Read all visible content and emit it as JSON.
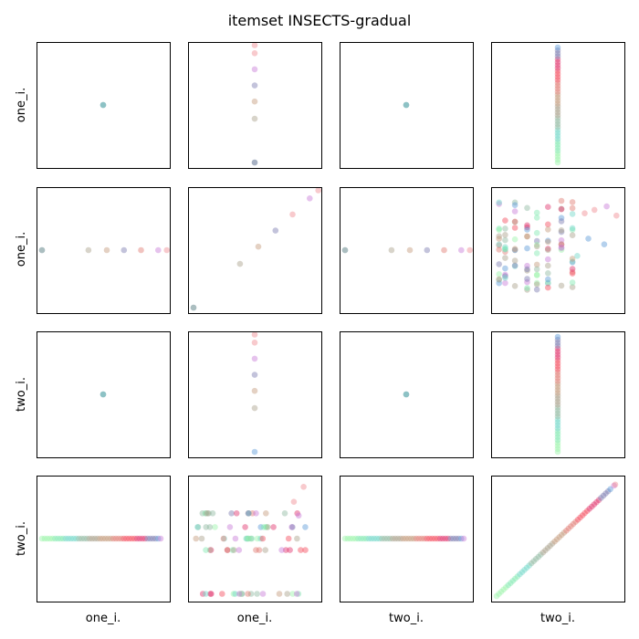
{
  "chart_data": {
    "type": "scatter",
    "title": "itemset INSECTS-gradual",
    "grid": false,
    "rows": [
      "one_i.",
      "one_i.",
      "two_i.",
      "two_i."
    ],
    "cols": [
      "one_i.",
      "one_i.",
      "two_i.",
      "two_i."
    ],
    "palette": [
      "#98f5a8",
      "#7fe8b0",
      "#6fd6c8",
      "#8fb8a0",
      "#a8a08a",
      "#c49a7a",
      "#e07a70",
      "#f44a5a",
      "#e0306a",
      "#7a7ab0",
      "#5a9ad8",
      "#c87ad8",
      "#f08a90",
      "#9aa0c8"
    ],
    "panels": [
      {
        "row": 0,
        "col": 0,
        "points": [
          [
            0.5,
            0.5,
            3
          ],
          [
            0.5,
            0.5,
            9
          ],
          [
            0.5,
            0.5,
            2
          ]
        ]
      },
      {
        "row": 0,
        "col": 1,
        "points": [
          [
            0.5,
            0.0,
            3
          ],
          [
            0.5,
            0.0,
            9
          ],
          [
            0.5,
            0.38,
            4
          ],
          [
            0.5,
            0.53,
            5
          ],
          [
            0.5,
            0.67,
            9
          ],
          [
            0.5,
            0.81,
            11
          ],
          [
            0.5,
            0.95,
            12
          ],
          [
            0.5,
            1.02,
            12
          ]
        ]
      },
      {
        "row": 0,
        "col": 2,
        "points": [
          [
            0.5,
            0.5,
            3
          ],
          [
            0.5,
            0.5,
            9
          ],
          [
            0.5,
            0.5,
            2
          ]
        ]
      },
      {
        "row": 0,
        "col": 3,
        "points": "col_dense_a"
      },
      {
        "row": 1,
        "col": 0,
        "points": [
          [
            0.0,
            0.5,
            9
          ],
          [
            0.0,
            0.5,
            3
          ],
          [
            0.38,
            0.5,
            4
          ],
          [
            0.53,
            0.5,
            5
          ],
          [
            0.67,
            0.5,
            9
          ],
          [
            0.81,
            0.5,
            6
          ],
          [
            0.95,
            0.5,
            11
          ],
          [
            1.02,
            0.5,
            12
          ]
        ]
      },
      {
        "row": 1,
        "col": 1,
        "points": [
          [
            0.0,
            0.0,
            9
          ],
          [
            0.0,
            0.0,
            3
          ],
          [
            0.38,
            0.38,
            4
          ],
          [
            0.53,
            0.53,
            5
          ],
          [
            0.67,
            0.67,
            9
          ],
          [
            0.81,
            0.81,
            12
          ],
          [
            0.95,
            0.95,
            11
          ],
          [
            1.02,
            1.02,
            12
          ]
        ]
      },
      {
        "row": 1,
        "col": 2,
        "points": [
          [
            0.0,
            0.5,
            9
          ],
          [
            0.0,
            0.5,
            3
          ],
          [
            0.38,
            0.5,
            4
          ],
          [
            0.53,
            0.5,
            5
          ],
          [
            0.67,
            0.5,
            9
          ],
          [
            0.81,
            0.5,
            6
          ],
          [
            0.95,
            0.5,
            11
          ],
          [
            1.02,
            0.5,
            12
          ]
        ]
      },
      {
        "row": 1,
        "col": 3,
        "points": "spread_b"
      },
      {
        "row": 2,
        "col": 0,
        "points": [
          [
            0.5,
            0.5,
            3
          ],
          [
            0.5,
            0.5,
            9
          ],
          [
            0.5,
            0.5,
            2
          ]
        ]
      },
      {
        "row": 2,
        "col": 1,
        "points": [
          [
            0.5,
            0.0,
            10
          ],
          [
            0.5,
            0.38,
            4
          ],
          [
            0.5,
            0.53,
            5
          ],
          [
            0.5,
            0.67,
            9
          ],
          [
            0.5,
            0.81,
            11
          ],
          [
            0.5,
            0.95,
            12
          ],
          [
            0.5,
            1.02,
            12
          ]
        ]
      },
      {
        "row": 2,
        "col": 2,
        "points": [
          [
            0.5,
            0.5,
            3
          ],
          [
            0.5,
            0.5,
            9
          ],
          [
            0.5,
            0.5,
            2
          ]
        ]
      },
      {
        "row": 2,
        "col": 3,
        "points": "col_dense_b"
      },
      {
        "row": 3,
        "col": 0,
        "points": "row_dense_a"
      },
      {
        "row": 3,
        "col": 1,
        "points": "spread_c"
      },
      {
        "row": 3,
        "col": 2,
        "points": "row_dense_a"
      },
      {
        "row": 3,
        "col": 3,
        "points": "diagonal"
      }
    ]
  }
}
